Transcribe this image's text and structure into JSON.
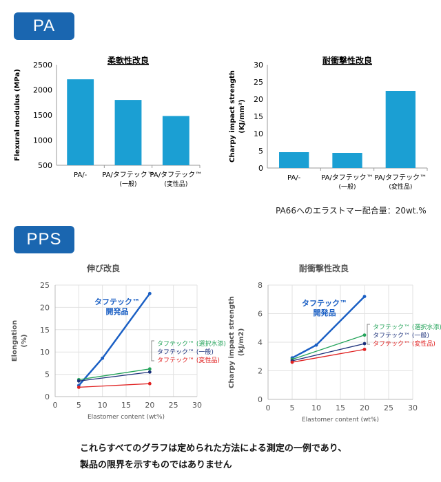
{
  "sections": {
    "pa_label": "PA",
    "pps_label": "PPS"
  },
  "pa_note": "PA66へのエラストマー配合量：20wt.%",
  "footer": {
    "line1": "これらすべてのグラフは定められた方法による測定の一例であり、",
    "line2": "製品の限界を示すものではありません"
  },
  "colors": {
    "tag": "#1a66b0",
    "bar": "#1b9fd3",
    "dev": "#1a5fc4",
    "modified": "#24a35a",
    "general": "#1a2f7a",
    "denatured": "#e02020"
  },
  "chart_data": [
    {
      "id": "pa_flex",
      "type": "bar",
      "title": "柔軟性改良",
      "ylabel": "Flexural modulus (MPa)",
      "xlabel": "",
      "ylim": [
        500,
        2500
      ],
      "yticks": [
        500,
        1000,
        1500,
        2000,
        2500
      ],
      "categories": [
        {
          "line1": "PA/-",
          "line2": ""
        },
        {
          "line1": "PA/タフテック™",
          "line2": "(一般)"
        },
        {
          "line1": "PA/タフテック™",
          "line2": "(変性品)"
        }
      ],
      "values": [
        2210,
        1800,
        1480
      ]
    },
    {
      "id": "pa_impact",
      "type": "bar",
      "title": "耐衝撃性改良",
      "ylabel": "Charpy impact strength",
      "ylabel2": "(KJ/mm²)",
      "xlabel": "",
      "ylim": [
        0,
        30
      ],
      "yticks": [
        0,
        5,
        10,
        15,
        20,
        25,
        30
      ],
      "categories": [
        {
          "line1": "PA/-",
          "line2": ""
        },
        {
          "line1": "PA/タフテック™",
          "line2": "(一般)"
        },
        {
          "line1": "PA/タフテック™",
          "line2": "(変性品)"
        }
      ],
      "values": [
        4.6,
        4.4,
        22.4
      ]
    },
    {
      "id": "pps_elong",
      "type": "line",
      "title": "伸び改良",
      "ylabel": "Elongation",
      "ylabel2": "(%)",
      "xlabel": "Elastomer content (wt%)",
      "xlim": [
        0,
        30
      ],
      "xticks": [
        0,
        5,
        10,
        15,
        20,
        25,
        30
      ],
      "ylim": [
        0,
        25
      ],
      "yticks": [
        0,
        5,
        10,
        15,
        20,
        25
      ],
      "grid": true,
      "series": [
        {
          "name": "タフテック™ 開発品",
          "name1": "タフテック™",
          "name2": "開発品",
          "key": "dev",
          "x": [
            5,
            10,
            20
          ],
          "y": [
            2.5,
            8.6,
            23.1
          ]
        },
        {
          "name": "タフテック™ (選択水添)",
          "key": "modified",
          "x": [
            5,
            20
          ],
          "y": [
            3.8,
            6.2
          ]
        },
        {
          "name": "タフテック™ (一般)",
          "key": "general",
          "x": [
            5,
            20
          ],
          "y": [
            3.5,
            5.5
          ]
        },
        {
          "name": "タフテック™ (変性品)",
          "key": "denatured",
          "x": [
            5,
            20
          ],
          "y": [
            2.1,
            2.9
          ]
        }
      ]
    },
    {
      "id": "pps_impact",
      "type": "line",
      "title": "耐衝撃性改良",
      "ylabel": "Charpy impact strength",
      "ylabel2": "(kJ/m2)",
      "xlabel": "Elastomer content (wt%)",
      "xlim": [
        0,
        30
      ],
      "xticks": [
        0,
        5,
        10,
        15,
        20,
        25,
        30
      ],
      "ylim": [
        0,
        8
      ],
      "yticks": [
        0,
        2,
        4,
        6,
        8
      ],
      "grid": true,
      "series": [
        {
          "name": "タフテック™ 開発品",
          "name1": "タフテック™",
          "name2": "開発品",
          "key": "dev",
          "x": [
            5,
            10,
            20
          ],
          "y": [
            2.9,
            3.8,
            7.2
          ]
        },
        {
          "name": "タフテック™ (選択水添)",
          "key": "modified",
          "x": [
            5,
            20
          ],
          "y": [
            2.8,
            4.5
          ]
        },
        {
          "name": "タフテック™ (一般)",
          "key": "general",
          "x": [
            5,
            20
          ],
          "y": [
            2.7,
            3.9
          ]
        },
        {
          "name": "タフテック™ (変性品)",
          "key": "denatured",
          "x": [
            5,
            20
          ],
          "y": [
            2.6,
            3.5
          ]
        }
      ]
    }
  ]
}
